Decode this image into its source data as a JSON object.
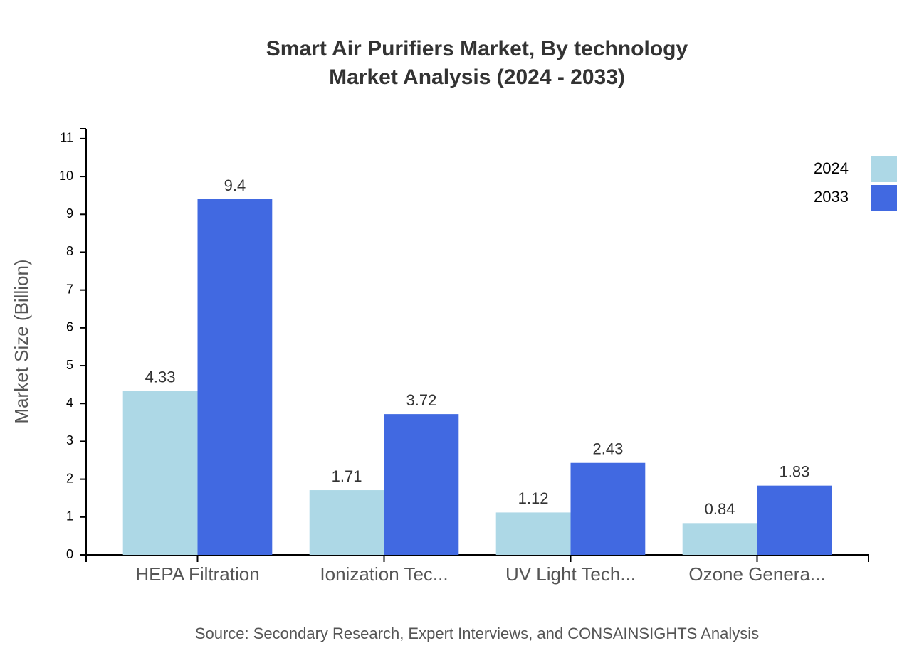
{
  "chart_data": {
    "type": "bar",
    "title": "Smart Air Purifiers Market, By technology",
    "subtitle": "Market Analysis (2024 - 2033)",
    "y_label": "Market Size (Billion)",
    "source": "Source: Secondary Research, Expert Interviews, and CONSAINSIGHTS Analysis",
    "categories": [
      "HEPA Filtration",
      "Ionization Tec...",
      "UV Light Tech...",
      "Ozone Genera..."
    ],
    "series": [
      {
        "name": "2024",
        "color": "#add8e6",
        "values": [
          4.33,
          1.71,
          1.12,
          0.84
        ]
      },
      {
        "name": "2033",
        "color": "#4169e1",
        "values": [
          9.4,
          3.72,
          2.43,
          1.83
        ]
      }
    ],
    "ylim": [
      0,
      11.28
    ],
    "yticks": [
      0,
      1,
      2,
      3,
      4,
      5,
      6,
      7,
      8,
      9,
      10,
      11
    ],
    "legend": "top-right"
  }
}
